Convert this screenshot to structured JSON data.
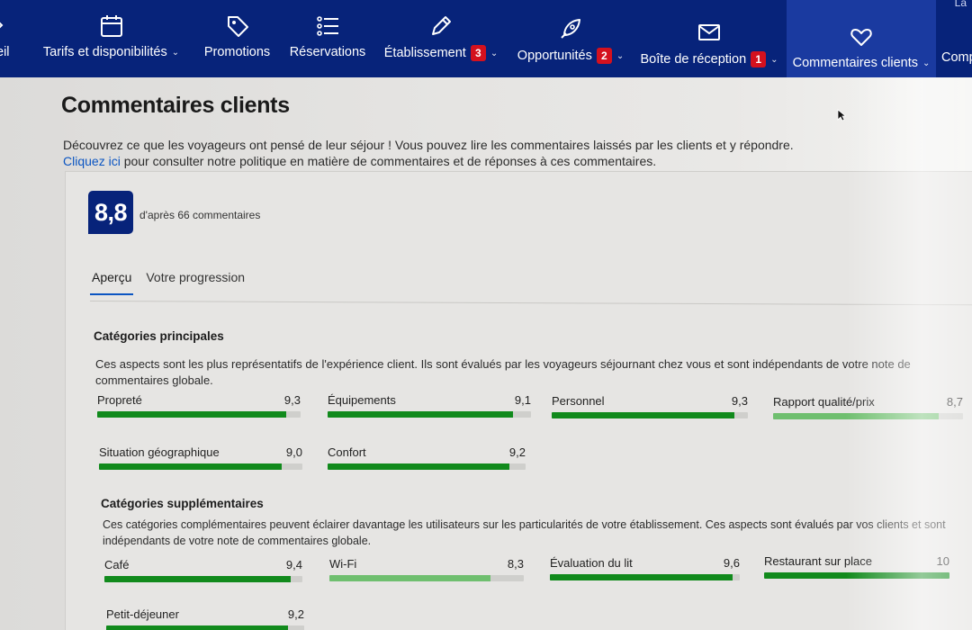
{
  "nav": {
    "items": [
      {
        "label": "eil",
        "badge": "",
        "chevron": false,
        "icon": "partial-home-icon"
      },
      {
        "label": "Tarifs et disponibilités",
        "badge": "",
        "chevron": true,
        "icon": "calendar-icon"
      },
      {
        "label": "Promotions",
        "badge": "",
        "chevron": false,
        "icon": "tag-icon"
      },
      {
        "label": "Réservations",
        "badge": "",
        "chevron": false,
        "icon": "list-icon"
      },
      {
        "label": "Établissement",
        "badge": "3",
        "chevron": true,
        "icon": "pencil-icon"
      },
      {
        "label": "Opportunités",
        "badge": "2",
        "chevron": true,
        "icon": "rocket-icon"
      },
      {
        "label": "Boîte de réception",
        "badge": "1",
        "chevron": true,
        "icon": "envelope-icon"
      },
      {
        "label": "Commentaires clients",
        "badge": "",
        "chevron": true,
        "icon": "heart-icon"
      },
      {
        "label": "Comp",
        "badge": "",
        "chevron": false,
        "icon": ""
      }
    ],
    "corner": "La"
  },
  "page": {
    "title": "Commentaires clients",
    "intro_line1": "Découvrez ce que les voyageurs ont pensé de leur séjour ! Vous pouvez lire les commentaires laissés par les clients et y répondre.",
    "intro_link": "Cliquez ici",
    "intro_line2": " pour consulter notre politique en matière de commentaires et de réponses à ces commentaires."
  },
  "score": {
    "value": "8,8",
    "caption": "d'après 66 commentaires"
  },
  "tabs": [
    "Aperçu",
    "Votre progression"
  ],
  "main_categories": {
    "title": "Catégories principales",
    "desc": "Ces aspects sont les plus représentatifs de l'expérience client. Ils sont évalués par les voyageurs séjournant chez vous et sont indépendants de votre note de commentaires globale.",
    "items": [
      {
        "label": "Propreté",
        "score": "9,3",
        "value": 9.3
      },
      {
        "label": "Équipements",
        "score": "9,1",
        "value": 9.1
      },
      {
        "label": "Personnel",
        "score": "9,3",
        "value": 9.3
      },
      {
        "label": "Rapport qualité/prix",
        "score": "8,7",
        "value": 8.7
      },
      {
        "label": "Situation géographique",
        "score": "9,0",
        "value": 9.0
      },
      {
        "label": "Confort",
        "score": "9,2",
        "value": 9.2
      }
    ]
  },
  "extra_categories": {
    "title": "Catégories supplémentaires",
    "desc": "Ces catégories complémentaires peuvent éclairer davantage les utilisateurs sur les particularités de votre établissement. Ces aspects sont évalués par vos clients et sont indépendants de votre note de commentaires globale.",
    "items": [
      {
        "label": "Café",
        "score": "9,4",
        "value": 9.4
      },
      {
        "label": "Wi-Fi",
        "score": "8,3",
        "value": 8.3
      },
      {
        "label": "Évaluation du lit",
        "score": "9,6",
        "value": 9.6
      },
      {
        "label": "Restaurant sur place",
        "score": "10",
        "value": 10
      },
      {
        "label": "Petit-déjeuner",
        "score": "9,2",
        "value": 9.2
      }
    ]
  },
  "colors": {
    "nav_bg": "#07237a",
    "bar_fill": "#118a1c",
    "bar_fill_light": "#6fbf6f",
    "badge": "#d4111e",
    "link": "#0b55c2"
  }
}
